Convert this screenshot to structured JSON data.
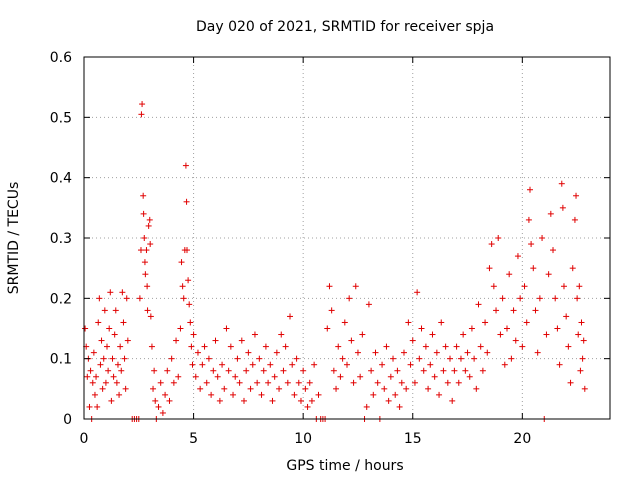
{
  "chart_data": {
    "type": "scatter",
    "title": "Day 020 of 2021, SRMTID for receiver spja",
    "xlabel": "GPS time / hours",
    "ylabel": "SRMTID / TECUs",
    "xlim": [
      0,
      24
    ],
    "ylim": [
      0,
      0.6
    ],
    "xticks": [
      0,
      5,
      10,
      15,
      20
    ],
    "xtick_labels": [
      "0",
      "5",
      "10",
      "15",
      "20"
    ],
    "yticks": [
      0,
      0.1,
      0.2,
      0.3,
      0.4,
      0.5,
      0.6
    ],
    "ytick_labels": [
      "0",
      "0.1",
      "0.2",
      "0.3",
      "0.4",
      "0.5",
      "0.6"
    ],
    "grid": true,
    "marker": "+",
    "marker_color": "#e00000",
    "series": [
      {
        "name": "SRMTID",
        "points": [
          [
            0.05,
            0.15
          ],
          [
            0.1,
            0.12
          ],
          [
            0.15,
            0.07
          ],
          [
            0.2,
            0.1
          ],
          [
            0.25,
            0.02
          ],
          [
            0.3,
            0.08
          ],
          [
            0.35,
            0.0
          ],
          [
            0.4,
            0.06
          ],
          [
            0.45,
            0.11
          ],
          [
            0.5,
            0.04
          ],
          [
            0.55,
            0.07
          ],
          [
            0.6,
            0.02
          ],
          [
            0.65,
            0.16
          ],
          [
            0.7,
            0.2
          ],
          [
            0.75,
            0.09
          ],
          [
            0.8,
            0.13
          ],
          [
            0.85,
            0.05
          ],
          [
            0.9,
            0.1
          ],
          [
            0.95,
            0.18
          ],
          [
            1.0,
            0.06
          ],
          [
            1.05,
            0.12
          ],
          [
            1.1,
            0.08
          ],
          [
            1.15,
            0.15
          ],
          [
            1.2,
            0.21
          ],
          [
            1.25,
            0.03
          ],
          [
            1.3,
            0.1
          ],
          [
            1.35,
            0.07
          ],
          [
            1.4,
            0.14
          ],
          [
            1.45,
            0.18
          ],
          [
            1.5,
            0.06
          ],
          [
            1.55,
            0.09
          ],
          [
            1.6,
            0.04
          ],
          [
            1.65,
            0.12
          ],
          [
            1.7,
            0.08
          ],
          [
            1.75,
            0.21
          ],
          [
            1.8,
            0.16
          ],
          [
            1.85,
            0.1
          ],
          [
            1.9,
            0.05
          ],
          [
            1.95,
            0.2
          ],
          [
            2.0,
            0.13
          ],
          [
            2.2,
            0.0
          ],
          [
            2.3,
            0.0
          ],
          [
            2.4,
            0.0
          ],
          [
            2.5,
            0.0
          ],
          [
            2.55,
            0.2
          ],
          [
            2.6,
            0.28
          ],
          [
            2.62,
            0.505
          ],
          [
            2.65,
            0.522
          ],
          [
            2.7,
            0.37
          ],
          [
            2.72,
            0.34
          ],
          [
            2.75,
            0.3
          ],
          [
            2.78,
            0.26
          ],
          [
            2.8,
            0.24
          ],
          [
            2.85,
            0.28
          ],
          [
            2.88,
            0.22
          ],
          [
            2.9,
            0.18
          ],
          [
            2.95,
            0.32
          ],
          [
            3.0,
            0.33
          ],
          [
            3.02,
            0.29
          ],
          [
            3.05,
            0.17
          ],
          [
            3.1,
            0.12
          ],
          [
            3.15,
            0.05
          ],
          [
            3.2,
            0.08
          ],
          [
            3.25,
            0.03
          ],
          [
            3.3,
            0.0
          ],
          [
            3.4,
            0.02
          ],
          [
            3.5,
            0.06
          ],
          [
            3.6,
            0.01
          ],
          [
            3.7,
            0.04
          ],
          [
            3.8,
            0.08
          ],
          [
            3.9,
            0.03
          ],
          [
            4.0,
            0.1
          ],
          [
            4.1,
            0.06
          ],
          [
            4.2,
            0.13
          ],
          [
            4.3,
            0.07
          ],
          [
            4.4,
            0.15
          ],
          [
            4.45,
            0.26
          ],
          [
            4.5,
            0.22
          ],
          [
            4.55,
            0.2
          ],
          [
            4.6,
            0.28
          ],
          [
            4.65,
            0.42
          ],
          [
            4.68,
            0.36
          ],
          [
            4.7,
            0.28
          ],
          [
            4.75,
            0.23
          ],
          [
            4.8,
            0.19
          ],
          [
            4.85,
            0.16
          ],
          [
            4.9,
            0.12
          ],
          [
            4.95,
            0.09
          ],
          [
            5.0,
            0.14
          ],
          [
            5.1,
            0.07
          ],
          [
            5.2,
            0.11
          ],
          [
            5.3,
            0.05
          ],
          [
            5.4,
            0.09
          ],
          [
            5.5,
            0.12
          ],
          [
            5.6,
            0.06
          ],
          [
            5.7,
            0.1
          ],
          [
            5.8,
            0.04
          ],
          [
            5.9,
            0.08
          ],
          [
            6.0,
            0.13
          ],
          [
            6.1,
            0.07
          ],
          [
            6.2,
            0.03
          ],
          [
            6.3,
            0.09
          ],
          [
            6.4,
            0.05
          ],
          [
            6.5,
            0.15
          ],
          [
            6.6,
            0.08
          ],
          [
            6.7,
            0.12
          ],
          [
            6.8,
            0.04
          ],
          [
            6.9,
            0.07
          ],
          [
            7.0,
            0.1
          ],
          [
            7.1,
            0.06
          ],
          [
            7.2,
            0.13
          ],
          [
            7.3,
            0.03
          ],
          [
            7.4,
            0.08
          ],
          [
            7.5,
            0.11
          ],
          [
            7.6,
            0.05
          ],
          [
            7.7,
            0.09
          ],
          [
            7.8,
            0.14
          ],
          [
            7.9,
            0.06
          ],
          [
            8.0,
            0.1
          ],
          [
            8.1,
            0.04
          ],
          [
            8.2,
            0.08
          ],
          [
            8.3,
            0.12
          ],
          [
            8.4,
            0.06
          ],
          [
            8.5,
            0.09
          ],
          [
            8.6,
            0.03
          ],
          [
            8.7,
            0.07
          ],
          [
            8.8,
            0.11
          ],
          [
            8.9,
            0.05
          ],
          [
            9.0,
            0.14
          ],
          [
            9.1,
            0.08
          ],
          [
            9.2,
            0.12
          ],
          [
            9.3,
            0.06
          ],
          [
            9.4,
            0.17
          ],
          [
            9.5,
            0.09
          ],
          [
            9.6,
            0.04
          ],
          [
            9.7,
            0.1
          ],
          [
            9.8,
            0.06
          ],
          [
            9.9,
            0.03
          ],
          [
            10.0,
            0.08
          ],
          [
            10.1,
            0.05
          ],
          [
            10.2,
            0.02
          ],
          [
            10.3,
            0.06
          ],
          [
            10.4,
            0.03
          ],
          [
            10.5,
            0.09
          ],
          [
            10.6,
            0.0
          ],
          [
            10.7,
            0.04
          ],
          [
            10.8,
            0.0
          ],
          [
            10.9,
            0.0
          ],
          [
            11.0,
            0.0
          ],
          [
            11.1,
            0.15
          ],
          [
            11.2,
            0.22
          ],
          [
            11.3,
            0.18
          ],
          [
            11.4,
            0.08
          ],
          [
            11.5,
            0.05
          ],
          [
            11.6,
            0.12
          ],
          [
            11.7,
            0.07
          ],
          [
            11.8,
            0.1
          ],
          [
            11.9,
            0.16
          ],
          [
            12.0,
            0.09
          ],
          [
            12.1,
            0.2
          ],
          [
            12.2,
            0.13
          ],
          [
            12.3,
            0.06
          ],
          [
            12.4,
            0.22
          ],
          [
            12.5,
            0.11
          ],
          [
            12.6,
            0.07
          ],
          [
            12.7,
            0.14
          ],
          [
            12.8,
            0.0
          ],
          [
            12.9,
            0.02
          ],
          [
            13.0,
            0.19
          ],
          [
            13.1,
            0.08
          ],
          [
            13.2,
            0.04
          ],
          [
            13.3,
            0.11
          ],
          [
            13.4,
            0.06
          ],
          [
            13.5,
            0.0
          ],
          [
            13.6,
            0.09
          ],
          [
            13.7,
            0.05
          ],
          [
            13.8,
            0.12
          ],
          [
            13.9,
            0.03
          ],
          [
            14.0,
            0.07
          ],
          [
            14.1,
            0.1
          ],
          [
            14.2,
            0.04
          ],
          [
            14.3,
            0.08
          ],
          [
            14.4,
            0.02
          ],
          [
            14.5,
            0.06
          ],
          [
            14.6,
            0.11
          ],
          [
            14.7,
            0.05
          ],
          [
            14.8,
            0.16
          ],
          [
            14.9,
            0.09
          ],
          [
            15.0,
            0.13
          ],
          [
            15.1,
            0.06
          ],
          [
            15.2,
            0.21
          ],
          [
            15.3,
            0.1
          ],
          [
            15.4,
            0.15
          ],
          [
            15.5,
            0.08
          ],
          [
            15.6,
            0.12
          ],
          [
            15.7,
            0.05
          ],
          [
            15.8,
            0.09
          ],
          [
            15.9,
            0.14
          ],
          [
            16.0,
            0.07
          ],
          [
            16.1,
            0.11
          ],
          [
            16.2,
            0.04
          ],
          [
            16.3,
            0.16
          ],
          [
            16.4,
            0.08
          ],
          [
            16.5,
            0.12
          ],
          [
            16.6,
            0.06
          ],
          [
            16.7,
            0.1
          ],
          [
            16.8,
            0.03
          ],
          [
            16.9,
            0.08
          ],
          [
            17.0,
            0.12
          ],
          [
            17.1,
            0.06
          ],
          [
            17.2,
            0.1
          ],
          [
            17.3,
            0.14
          ],
          [
            17.4,
            0.08
          ],
          [
            17.5,
            0.11
          ],
          [
            17.6,
            0.07
          ],
          [
            17.7,
            0.15
          ],
          [
            17.8,
            0.1
          ],
          [
            17.9,
            0.05
          ],
          [
            18.0,
            0.19
          ],
          [
            18.1,
            0.12
          ],
          [
            18.2,
            0.08
          ],
          [
            18.3,
            0.16
          ],
          [
            18.4,
            0.11
          ],
          [
            18.5,
            0.25
          ],
          [
            18.6,
            0.29
          ],
          [
            18.7,
            0.22
          ],
          [
            18.8,
            0.18
          ],
          [
            18.9,
            0.3
          ],
          [
            19.0,
            0.14
          ],
          [
            19.1,
            0.2
          ],
          [
            19.2,
            0.09
          ],
          [
            19.3,
            0.15
          ],
          [
            19.4,
            0.24
          ],
          [
            19.5,
            0.1
          ],
          [
            19.6,
            0.18
          ],
          [
            19.7,
            0.13
          ],
          [
            19.8,
            0.27
          ],
          [
            19.9,
            0.2
          ],
          [
            20.0,
            0.12
          ],
          [
            20.1,
            0.22
          ],
          [
            20.2,
            0.16
          ],
          [
            20.3,
            0.33
          ],
          [
            20.35,
            0.38
          ],
          [
            20.4,
            0.29
          ],
          [
            20.5,
            0.25
          ],
          [
            20.6,
            0.18
          ],
          [
            20.7,
            0.11
          ],
          [
            20.8,
            0.2
          ],
          [
            20.9,
            0.3
          ],
          [
            21.0,
            0.0
          ],
          [
            21.1,
            0.14
          ],
          [
            21.2,
            0.24
          ],
          [
            21.3,
            0.34
          ],
          [
            21.4,
            0.28
          ],
          [
            21.5,
            0.2
          ],
          [
            21.6,
            0.15
          ],
          [
            21.7,
            0.09
          ],
          [
            21.8,
            0.39
          ],
          [
            21.85,
            0.35
          ],
          [
            21.9,
            0.22
          ],
          [
            22.0,
            0.17
          ],
          [
            22.1,
            0.12
          ],
          [
            22.2,
            0.06
          ],
          [
            22.3,
            0.25
          ],
          [
            22.4,
            0.33
          ],
          [
            22.45,
            0.37
          ],
          [
            22.5,
            0.2
          ],
          [
            22.55,
            0.14
          ],
          [
            22.6,
            0.22
          ],
          [
            22.65,
            0.08
          ],
          [
            22.7,
            0.16
          ],
          [
            22.75,
            0.1
          ],
          [
            22.8,
            0.13
          ],
          [
            22.85,
            0.05
          ]
        ]
      }
    ]
  }
}
